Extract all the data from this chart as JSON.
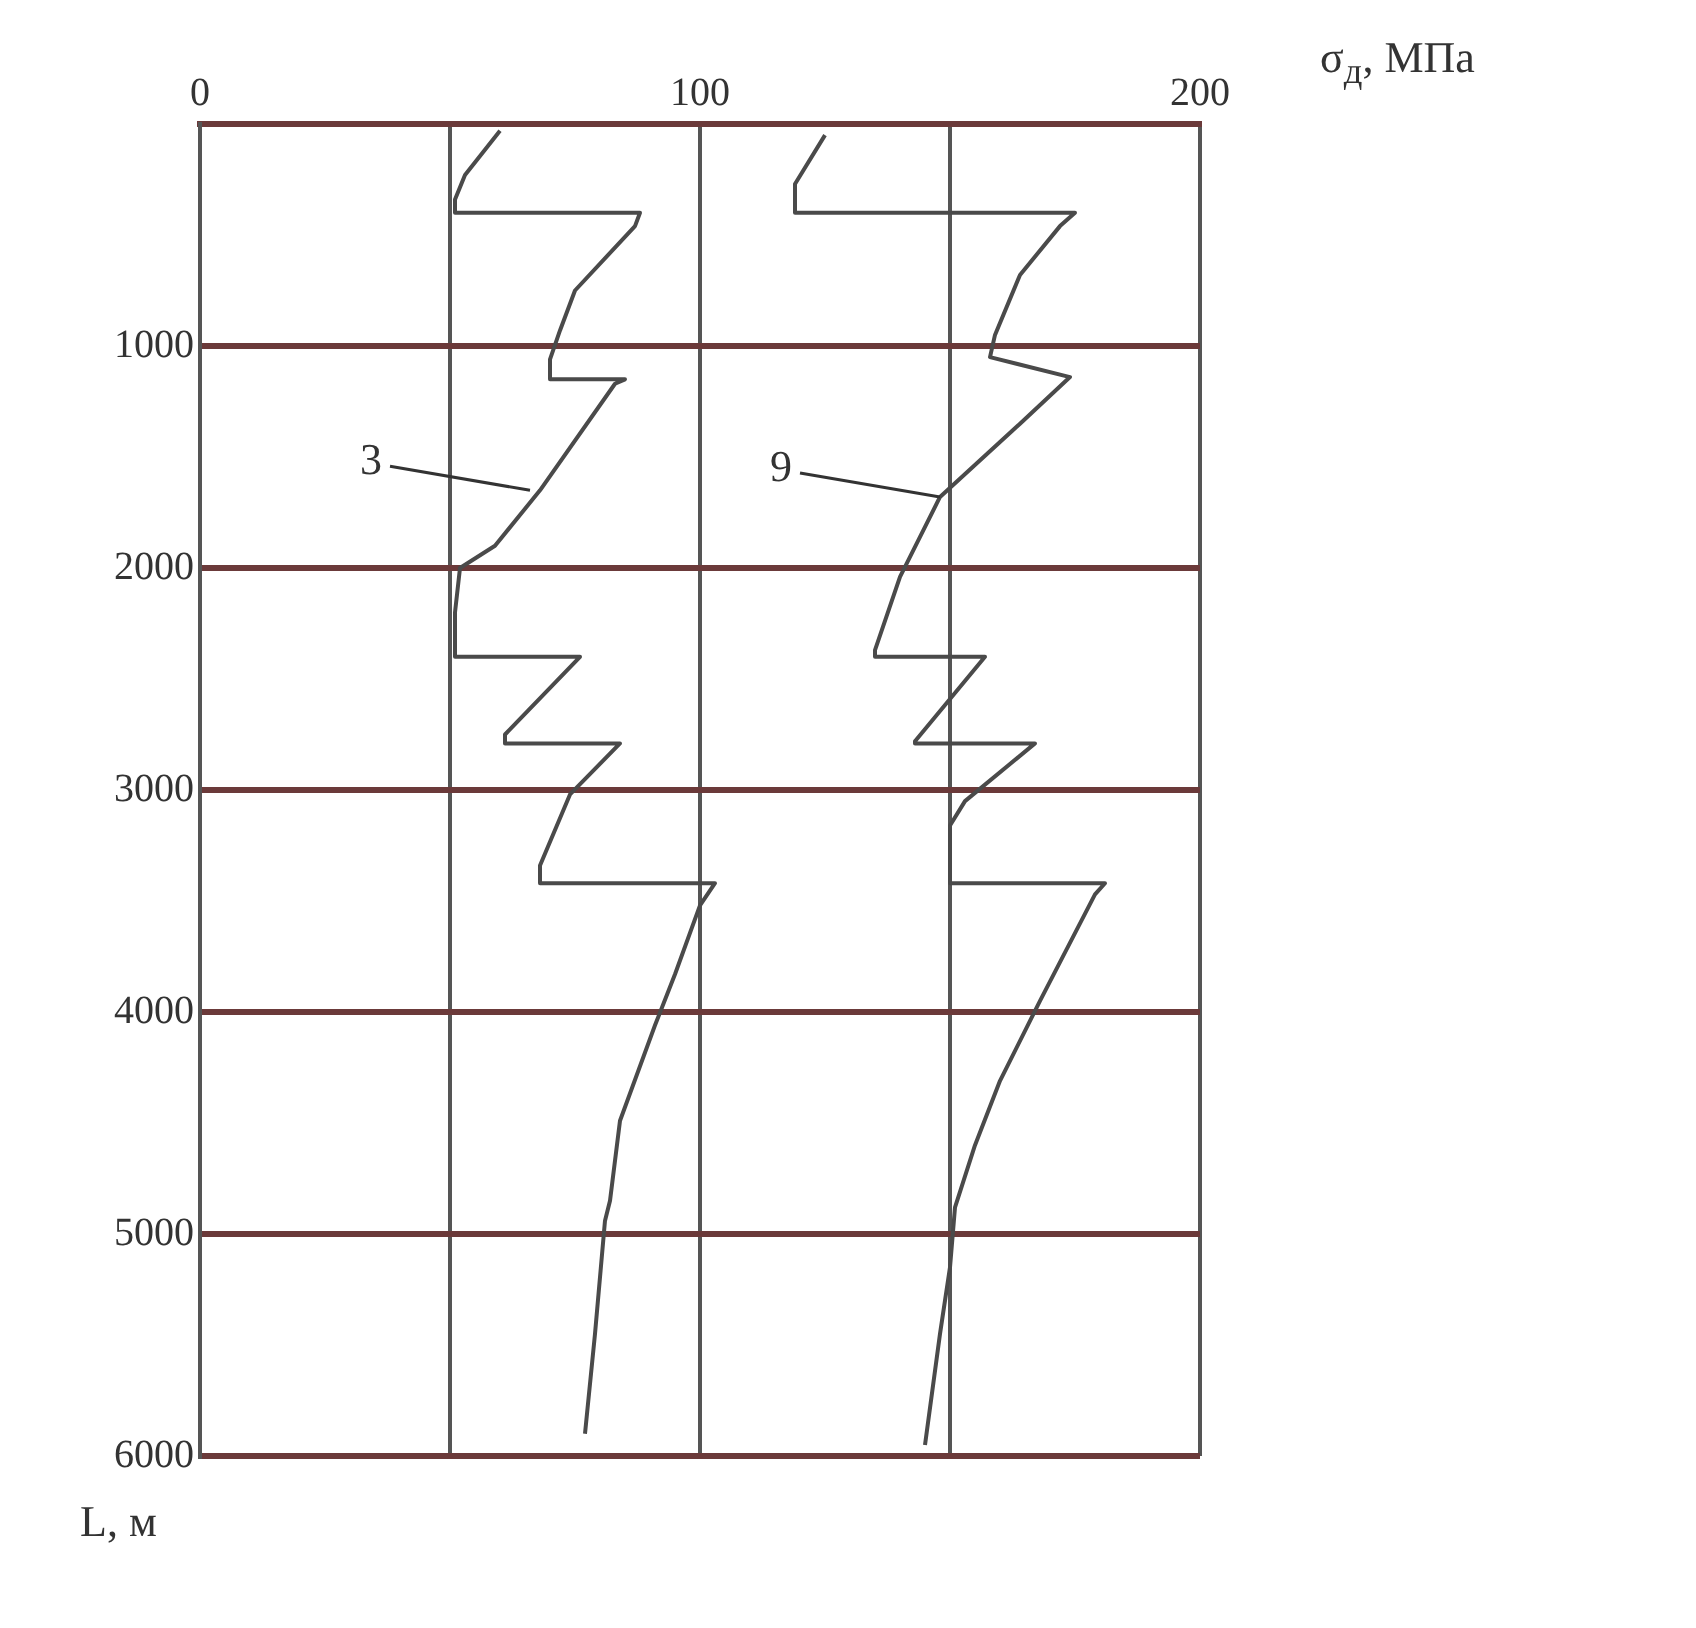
{
  "chart_data": {
    "type": "line",
    "xlabel": "σ$_{д}$, МПа",
    "ylabel": "L, м",
    "xlim": [
      0,
      200
    ],
    "ylim": [
      6000,
      0
    ],
    "xticks": [
      0,
      {
        "value": 50,
        "label": null
      },
      100,
      {
        "value": 150,
        "label": null
      },
      200
    ],
    "yticks": [
      {
        "value": 0,
        "label": null
      },
      1000,
      2000,
      3000,
      4000,
      5000,
      6000
    ],
    "grid": true,
    "series": [
      {
        "color": "#4a4a4a",
        "x": [
          60,
          53,
          51,
          51,
          88,
          87,
          75,
          72,
          70,
          70,
          85,
          83,
          68,
          59,
          52,
          51,
          51,
          76,
          61,
          61,
          84,
          74,
          68,
          68,
          103,
          100,
          95,
          91,
          84,
          82,
          81,
          79,
          77
        ],
        "values": [
          30,
          230,
          340,
          400,
          400,
          460,
          750,
          930,
          1060,
          1150,
          1150,
          1170,
          1650,
          1900,
          2000,
          2200,
          2400,
          2400,
          2750,
          2790,
          2790,
          3020,
          3340,
          3420,
          3420,
          3520,
          3830,
          4060,
          4490,
          4850,
          4940,
          5450,
          5900
        ]
      },
      {
        "color": "#4a4a4a",
        "x": [
          125,
          119,
          119,
          175,
          172,
          164,
          159,
          158,
          174,
          164,
          148,
          140,
          135,
          135,
          157,
          143,
          143,
          167,
          153,
          150,
          150,
          181,
          179,
          168,
          160,
          155,
          151,
          150,
          148,
          145
        ],
        "values": [
          50,
          270,
          400,
          400,
          460,
          680,
          950,
          1050,
          1140,
          1350,
          1680,
          2040,
          2370,
          2400,
          2400,
          2780,
          2790,
          2790,
          3050,
          3160,
          3420,
          3420,
          3470,
          3950,
          4310,
          4600,
          4880,
          5150,
          5450,
          5950
        ]
      }
    ],
    "annotations": [
      {
        "text": "3",
        "x": 66,
        "y": 1650
      },
      {
        "text": "9",
        "x": 148,
        "y": 1680
      }
    ]
  }
}
